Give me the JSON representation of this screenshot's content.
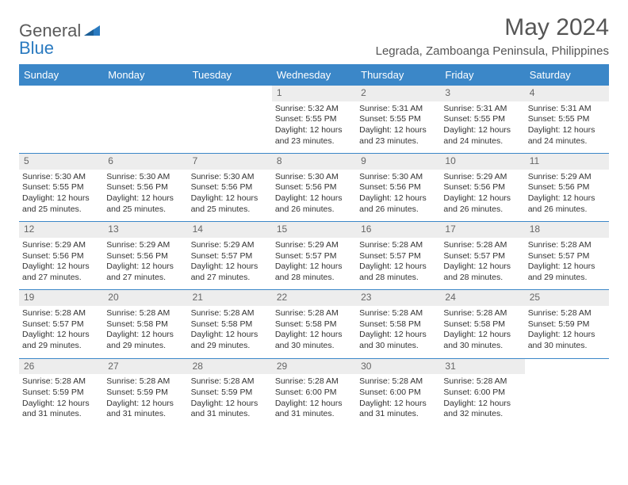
{
  "logo": {
    "general": "General",
    "blue": "Blue"
  },
  "title": "May 2024",
  "subtitle": "Legrada, Zamboanga Peninsula, Philippines",
  "colors": {
    "header_bg": "#3b87c8",
    "header_text": "#ffffff",
    "daynum_bg": "#ededed",
    "border": "#3b87c8",
    "logo_gray": "#5a5a5a",
    "logo_blue": "#2a7ac0"
  },
  "dayNames": [
    "Sunday",
    "Monday",
    "Tuesday",
    "Wednesday",
    "Thursday",
    "Friday",
    "Saturday"
  ],
  "startOffset": 3,
  "days": [
    {
      "n": "1",
      "sr": "5:32 AM",
      "ss": "5:55 PM",
      "dl": "12 hours and 23 minutes."
    },
    {
      "n": "2",
      "sr": "5:31 AM",
      "ss": "5:55 PM",
      "dl": "12 hours and 23 minutes."
    },
    {
      "n": "3",
      "sr": "5:31 AM",
      "ss": "5:55 PM",
      "dl": "12 hours and 24 minutes."
    },
    {
      "n": "4",
      "sr": "5:31 AM",
      "ss": "5:55 PM",
      "dl": "12 hours and 24 minutes."
    },
    {
      "n": "5",
      "sr": "5:30 AM",
      "ss": "5:55 PM",
      "dl": "12 hours and 25 minutes."
    },
    {
      "n": "6",
      "sr": "5:30 AM",
      "ss": "5:56 PM",
      "dl": "12 hours and 25 minutes."
    },
    {
      "n": "7",
      "sr": "5:30 AM",
      "ss": "5:56 PM",
      "dl": "12 hours and 25 minutes."
    },
    {
      "n": "8",
      "sr": "5:30 AM",
      "ss": "5:56 PM",
      "dl": "12 hours and 26 minutes."
    },
    {
      "n": "9",
      "sr": "5:30 AM",
      "ss": "5:56 PM",
      "dl": "12 hours and 26 minutes."
    },
    {
      "n": "10",
      "sr": "5:29 AM",
      "ss": "5:56 PM",
      "dl": "12 hours and 26 minutes."
    },
    {
      "n": "11",
      "sr": "5:29 AM",
      "ss": "5:56 PM",
      "dl": "12 hours and 26 minutes."
    },
    {
      "n": "12",
      "sr": "5:29 AM",
      "ss": "5:56 PM",
      "dl": "12 hours and 27 minutes."
    },
    {
      "n": "13",
      "sr": "5:29 AM",
      "ss": "5:56 PM",
      "dl": "12 hours and 27 minutes."
    },
    {
      "n": "14",
      "sr": "5:29 AM",
      "ss": "5:57 PM",
      "dl": "12 hours and 27 minutes."
    },
    {
      "n": "15",
      "sr": "5:29 AM",
      "ss": "5:57 PM",
      "dl": "12 hours and 28 minutes."
    },
    {
      "n": "16",
      "sr": "5:28 AM",
      "ss": "5:57 PM",
      "dl": "12 hours and 28 minutes."
    },
    {
      "n": "17",
      "sr": "5:28 AM",
      "ss": "5:57 PM",
      "dl": "12 hours and 28 minutes."
    },
    {
      "n": "18",
      "sr": "5:28 AM",
      "ss": "5:57 PM",
      "dl": "12 hours and 29 minutes."
    },
    {
      "n": "19",
      "sr": "5:28 AM",
      "ss": "5:57 PM",
      "dl": "12 hours and 29 minutes."
    },
    {
      "n": "20",
      "sr": "5:28 AM",
      "ss": "5:58 PM",
      "dl": "12 hours and 29 minutes."
    },
    {
      "n": "21",
      "sr": "5:28 AM",
      "ss": "5:58 PM",
      "dl": "12 hours and 29 minutes."
    },
    {
      "n": "22",
      "sr": "5:28 AM",
      "ss": "5:58 PM",
      "dl": "12 hours and 30 minutes."
    },
    {
      "n": "23",
      "sr": "5:28 AM",
      "ss": "5:58 PM",
      "dl": "12 hours and 30 minutes."
    },
    {
      "n": "24",
      "sr": "5:28 AM",
      "ss": "5:58 PM",
      "dl": "12 hours and 30 minutes."
    },
    {
      "n": "25",
      "sr": "5:28 AM",
      "ss": "5:59 PM",
      "dl": "12 hours and 30 minutes."
    },
    {
      "n": "26",
      "sr": "5:28 AM",
      "ss": "5:59 PM",
      "dl": "12 hours and 31 minutes."
    },
    {
      "n": "27",
      "sr": "5:28 AM",
      "ss": "5:59 PM",
      "dl": "12 hours and 31 minutes."
    },
    {
      "n": "28",
      "sr": "5:28 AM",
      "ss": "5:59 PM",
      "dl": "12 hours and 31 minutes."
    },
    {
      "n": "29",
      "sr": "5:28 AM",
      "ss": "6:00 PM",
      "dl": "12 hours and 31 minutes."
    },
    {
      "n": "30",
      "sr": "5:28 AM",
      "ss": "6:00 PM",
      "dl": "12 hours and 31 minutes."
    },
    {
      "n": "31",
      "sr": "5:28 AM",
      "ss": "6:00 PM",
      "dl": "12 hours and 32 minutes."
    }
  ],
  "labels": {
    "sunrise": "Sunrise:",
    "sunset": "Sunset:",
    "daylight": "Daylight:"
  }
}
